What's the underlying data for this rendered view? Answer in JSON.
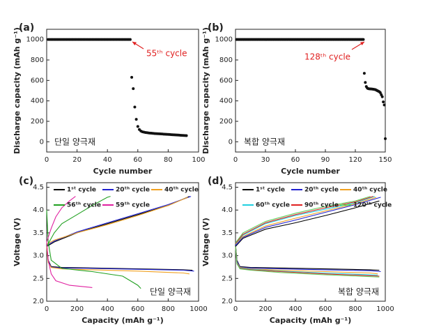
{
  "chart_data": [
    {
      "type": "scatter",
      "title": "(a)",
      "x_label": "Cycle number",
      "y_label": "Discharge capacity (mAh g⁻¹)",
      "xlim": [
        0,
        100
      ],
      "xticks": [
        0,
        20,
        40,
        60,
        80,
        100
      ],
      "ylim": [
        -100,
        1100
      ],
      "yticks": [
        0,
        200,
        400,
        600,
        800,
        1000
      ],
      "annotations": [
        {
          "text": "55ᵗʰ cycle",
          "color": "#e02020"
        },
        {
          "text": "단일 양극재",
          "color": "#222222"
        }
      ],
      "series": [
        {
          "color": "#111111",
          "x": [
            1,
            2,
            3,
            4,
            5,
            6,
            7,
            8,
            9,
            10,
            11,
            12,
            13,
            14,
            15,
            16,
            17,
            18,
            19,
            20,
            21,
            22,
            23,
            24,
            25,
            26,
            27,
            28,
            29,
            30,
            31,
            32,
            33,
            34,
            35,
            36,
            37,
            38,
            39,
            40,
            41,
            42,
            43,
            44,
            45,
            46,
            47,
            48,
            49,
            50,
            51,
            52,
            53,
            54,
            55,
            56,
            57,
            58,
            59,
            60,
            61,
            62,
            63,
            64,
            65,
            66,
            67,
            68,
            69,
            70,
            71,
            72,
            73,
            74,
            75,
            76,
            77,
            78,
            79,
            80,
            81,
            82,
            83,
            84,
            85,
            86,
            87,
            88,
            89,
            90,
            91,
            92
          ],
          "values": [
            1000,
            1000,
            1000,
            1000,
            1000,
            1000,
            1000,
            1000,
            1000,
            1000,
            1000,
            1000,
            1000,
            1000,
            1000,
            1000,
            1000,
            1000,
            1000,
            1000,
            1000,
            1000,
            1000,
            1000,
            1000,
            1000,
            1000,
            1000,
            1000,
            1000,
            1000,
            1000,
            1000,
            1000,
            1000,
            1000,
            1000,
            1000,
            1000,
            1000,
            1000,
            1000,
            1000,
            1000,
            1000,
            1000,
            1000,
            1000,
            1000,
            1000,
            1000,
            1000,
            1000,
            1000,
            1000,
            630,
            520,
            340,
            220,
            150,
            120,
            105,
            98,
            94,
            91,
            89,
            87,
            85,
            84,
            82,
            81,
            80,
            79,
            78,
            77,
            76,
            75,
            74,
            73,
            72,
            71,
            70,
            69,
            68,
            67,
            66,
            65,
            64,
            63,
            62,
            61,
            60
          ]
        }
      ]
    },
    {
      "type": "scatter",
      "title": "(b)",
      "x_label": "Cycle number",
      "y_label": "Discharge capacity (mAh g⁻¹)",
      "xlim": [
        0,
        150
      ],
      "xticks": [
        0,
        30,
        60,
        90,
        120,
        150
      ],
      "ylim": [
        -100,
        1100
      ],
      "yticks": [
        0,
        200,
        400,
        600,
        800,
        1000
      ],
      "annotations": [
        {
          "text": "128ᵗʰ cycle",
          "color": "#e02020"
        },
        {
          "text": "복합 양극재",
          "color": "#222222"
        }
      ],
      "series": [
        {
          "color": "#111111",
          "x": [
            1,
            2,
            3,
            4,
            5,
            6,
            7,
            8,
            9,
            10,
            11,
            12,
            13,
            14,
            15,
            16,
            17,
            18,
            19,
            20,
            21,
            22,
            23,
            24,
            25,
            26,
            27,
            28,
            29,
            30,
            31,
            32,
            33,
            34,
            35,
            36,
            37,
            38,
            39,
            40,
            41,
            42,
            43,
            44,
            45,
            46,
            47,
            48,
            49,
            50,
            51,
            52,
            53,
            54,
            55,
            56,
            57,
            58,
            59,
            60,
            61,
            62,
            63,
            64,
            65,
            66,
            67,
            68,
            69,
            70,
            71,
            72,
            73,
            74,
            75,
            76,
            77,
            78,
            79,
            80,
            81,
            82,
            83,
            84,
            85,
            86,
            87,
            88,
            89,
            90,
            91,
            92,
            93,
            94,
            95,
            96,
            97,
            98,
            99,
            100,
            101,
            102,
            103,
            104,
            105,
            106,
            107,
            108,
            109,
            110,
            111,
            112,
            113,
            114,
            115,
            116,
            117,
            118,
            119,
            120,
            121,
            122,
            123,
            124,
            125,
            126,
            127,
            128,
            129,
            130,
            131,
            132,
            133,
            134,
            135,
            136,
            137,
            138,
            139,
            140,
            141,
            142,
            143,
            144,
            145,
            146,
            147,
            148,
            149,
            150
          ],
          "values": [
            1000,
            1000,
            1000,
            1000,
            1000,
            1000,
            1000,
            1000,
            1000,
            1000,
            1000,
            1000,
            1000,
            1000,
            1000,
            1000,
            1000,
            1000,
            1000,
            1000,
            1000,
            1000,
            1000,
            1000,
            1000,
            1000,
            1000,
            1000,
            1000,
            1000,
            1000,
            1000,
            1000,
            1000,
            1000,
            1000,
            1000,
            1000,
            1000,
            1000,
            1000,
            1000,
            1000,
            1000,
            1000,
            1000,
            1000,
            1000,
            1000,
            1000,
            1000,
            1000,
            1000,
            1000,
            1000,
            1000,
            1000,
            1000,
            1000,
            1000,
            1000,
            1000,
            1000,
            1000,
            1000,
            1000,
            1000,
            1000,
            1000,
            1000,
            1000,
            1000,
            1000,
            1000,
            1000,
            1000,
            1000,
            1000,
            1000,
            1000,
            1000,
            1000,
            1000,
            1000,
            1000,
            1000,
            1000,
            1000,
            1000,
            1000,
            1000,
            1000,
            1000,
            1000,
            1000,
            1000,
            1000,
            1000,
            1000,
            1000,
            1000,
            1000,
            1000,
            1000,
            1000,
            1000,
            1000,
            1000,
            1000,
            1000,
            1000,
            1000,
            1000,
            1000,
            1000,
            1000,
            1000,
            1000,
            1000,
            1000,
            1000,
            1000,
            1000,
            1000,
            1000,
            1000,
            1000,
            1000,
            670,
            580,
            540,
            525,
            520,
            518,
            517,
            516,
            515,
            514,
            512,
            510,
            505,
            500,
            495,
            490,
            480,
            460,
            440,
            390,
            360,
            30
          ]
        }
      ]
    },
    {
      "type": "line",
      "title": "(c)",
      "x_label": "Capacity (mAh g⁻¹)",
      "y_label": "Voltage (V)",
      "xlim": [
        0,
        1000
      ],
      "xticks": [
        0,
        200,
        400,
        600,
        800,
        1000
      ],
      "ylim": [
        2.0,
        4.6
      ],
      "yticks": [
        {
          "value": 2,
          "label": "2.0"
        },
        2.5,
        {
          "value": 3,
          "label": "3.0"
        },
        3.5,
        {
          "value": 4,
          "label": "4.0"
        },
        4.5
      ],
      "legend": true,
      "annotations": [
        {
          "text": "단일 양극재",
          "color": "#222222"
        }
      ],
      "series": [
        {
          "name": "1ˢᵗ cycle",
          "color": "#000000",
          "x": [
            0,
            10,
            30,
            100,
            300,
            600,
            900,
            960,
            null,
            0,
            50,
            200,
            400,
            600,
            800,
            940
          ],
          "values": [
            3.25,
            2.9,
            2.76,
            2.74,
            2.73,
            2.71,
            2.69,
            2.68,
            null,
            3.2,
            3.3,
            3.5,
            3.7,
            3.9,
            4.1,
            4.3
          ]
        },
        {
          "name": "20ᵗʰ cycle",
          "color": "#2020d0",
          "x": [
            0,
            10,
            30,
            100,
            300,
            600,
            900,
            970,
            null,
            0,
            50,
            200,
            400,
            600,
            800,
            950
          ],
          "values": [
            3.2,
            2.88,
            2.75,
            2.73,
            2.72,
            2.7,
            2.68,
            2.66,
            null,
            3.22,
            3.32,
            3.52,
            3.72,
            3.92,
            4.12,
            4.3
          ]
        },
        {
          "name": "40ᵗʰ cycle",
          "color": "#f0a020",
          "x": [
            0,
            10,
            30,
            100,
            300,
            600,
            900,
            940,
            null,
            0,
            50,
            200,
            400,
            600,
            800,
            930
          ],
          "values": [
            3.2,
            2.85,
            2.74,
            2.71,
            2.69,
            2.66,
            2.62,
            2.6,
            null,
            3.25,
            3.34,
            3.5,
            3.68,
            3.88,
            4.1,
            4.28
          ]
        },
        {
          "name": "56ᵗʰ cycle",
          "color": "#20a020",
          "x": [
            0,
            10,
            30,
            100,
            300,
            500,
            600,
            620,
            null,
            0,
            50,
            100,
            200,
            300,
            400,
            420
          ],
          "values": [
            4.0,
            3.3,
            2.9,
            2.72,
            2.65,
            2.55,
            2.35,
            2.28,
            null,
            3.2,
            3.5,
            3.7,
            3.9,
            4.1,
            4.28,
            4.3
          ]
        },
        {
          "name": "59ᵗʰ cycle",
          "color": "#e020a0",
          "x": [
            0,
            10,
            30,
            60,
            150,
            300,
            null,
            0,
            30,
            60,
            100,
            150,
            190
          ],
          "values": [
            3.3,
            2.9,
            2.6,
            2.45,
            2.35,
            2.3,
            null,
            3.3,
            3.6,
            3.85,
            4.05,
            4.2,
            4.3
          ]
        }
      ]
    },
    {
      "type": "line",
      "title": "(d)",
      "x_label": "Capacity (mAh g⁻¹)",
      "y_label": "Voltage (V)",
      "xlim": [
        0,
        1000
      ],
      "xticks": [
        0,
        200,
        400,
        600,
        800,
        1000
      ],
      "ylim": [
        2.0,
        4.6
      ],
      "yticks": [
        {
          "value": 2,
          "label": "2.0"
        },
        2.5,
        {
          "value": 3,
          "label": "3.0"
        },
        3.5,
        {
          "value": 4,
          "label": "4.0"
        },
        4.5
      ],
      "legend": true,
      "annotations": [
        {
          "text": "복합 양극재",
          "color": "#222222"
        }
      ],
      "series": [
        {
          "name": "1ˢᵗ cycle",
          "color": "#000000",
          "x": [
            0,
            10,
            30,
            100,
            300,
            600,
            900,
            960,
            null,
            0,
            50,
            200,
            400,
            600,
            800,
            960
          ],
          "values": [
            3.25,
            2.9,
            2.76,
            2.74,
            2.73,
            2.71,
            2.69,
            2.68,
            null,
            3.2,
            3.38,
            3.58,
            3.72,
            3.88,
            4.05,
            4.2
          ]
        },
        {
          "name": "20ᵗʰ cycle",
          "color": "#2020d0",
          "x": [
            0,
            10,
            30,
            100,
            300,
            600,
            900,
            970,
            null,
            0,
            50,
            200,
            400,
            600,
            800,
            970
          ],
          "values": [
            3.2,
            2.88,
            2.75,
            2.73,
            2.71,
            2.69,
            2.67,
            2.65,
            null,
            3.22,
            3.4,
            3.62,
            3.78,
            3.95,
            4.12,
            4.28
          ]
        },
        {
          "name": "40ᵗʰ cycle",
          "color": "#f0a020",
          "x": [
            0,
            10,
            30,
            100,
            300,
            600,
            900,
            950,
            null,
            0,
            50,
            200,
            400,
            600,
            800,
            940
          ],
          "values": [
            3.2,
            2.85,
            2.74,
            2.71,
            2.68,
            2.65,
            2.62,
            2.6,
            null,
            3.25,
            3.42,
            3.65,
            3.82,
            3.98,
            4.14,
            4.28
          ]
        },
        {
          "name": "60ᵗʰ cycle",
          "color": "#20d0e0",
          "x": [
            0,
            10,
            30,
            100,
            300,
            600,
            900,
            950,
            null,
            0,
            50,
            200,
            400,
            600,
            800,
            930
          ],
          "values": [
            3.2,
            2.84,
            2.73,
            2.7,
            2.66,
            2.62,
            2.58,
            2.57,
            null,
            3.25,
            3.45,
            3.7,
            3.88,
            4.02,
            4.16,
            4.3
          ]
        },
        {
          "name": "90ᵗʰ cycle",
          "color": "#e02020",
          "x": [
            0,
            10,
            30,
            100,
            300,
            600,
            900,
            960,
            null,
            0,
            50,
            200,
            400,
            600,
            800,
            920
          ],
          "values": [
            3.2,
            2.83,
            2.72,
            2.69,
            2.65,
            2.6,
            2.56,
            2.55,
            null,
            3.26,
            3.47,
            3.72,
            3.9,
            4.05,
            4.18,
            4.3
          ]
        },
        {
          "name": "120ᵗʰ cycle",
          "color": "#60d060",
          "x": [
            0,
            10,
            30,
            100,
            300,
            600,
            900,
            960,
            null,
            0,
            50,
            200,
            400,
            600,
            800,
            900
          ],
          "values": [
            3.2,
            2.82,
            2.71,
            2.68,
            2.63,
            2.58,
            2.54,
            2.53,
            null,
            3.28,
            3.5,
            3.75,
            3.93,
            4.08,
            4.2,
            4.3
          ]
        }
      ]
    }
  ]
}
